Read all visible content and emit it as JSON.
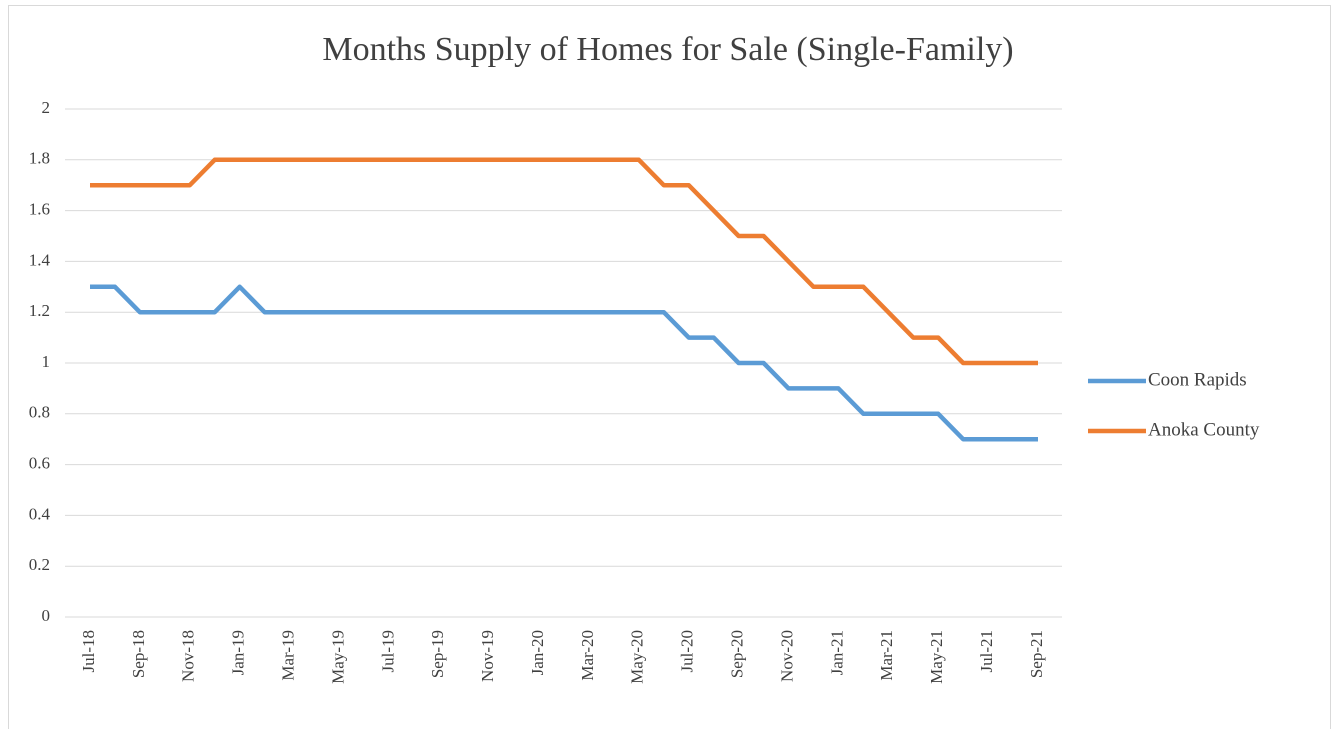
{
  "chart_data": {
    "type": "line",
    "title": "Months Supply of Homes for Sale (Single-Family)",
    "categories": [
      "Jul-18",
      null,
      "Sep-18",
      null,
      "Nov-18",
      null,
      "Jan-19",
      null,
      "Mar-19",
      null,
      "May-19",
      null,
      "Jul-19",
      null,
      "Sep-19",
      null,
      "Nov-19",
      null,
      "Jan-20",
      null,
      "Mar-20",
      null,
      "May-20",
      null,
      "Jul-20",
      null,
      "Sep-20",
      null,
      "Nov-20",
      null,
      "Jan-21",
      null,
      "Mar-21",
      null,
      "May-21",
      null,
      "Jul-21",
      null,
      "Sep-21"
    ],
    "series": [
      {
        "name": "Coon Rapids",
        "color": "#5b9bd5",
        "values": [
          1.3,
          1.3,
          1.2,
          1.2,
          1.2,
          1.2,
          1.3,
          1.2,
          1.2,
          1.2,
          1.2,
          1.2,
          1.2,
          1.2,
          1.2,
          1.2,
          1.2,
          1.2,
          1.2,
          1.2,
          1.2,
          1.2,
          1.2,
          1.2,
          1.1,
          1.1,
          1.0,
          1.0,
          0.9,
          0.9,
          0.9,
          0.8,
          0.8,
          0.8,
          0.8,
          0.7,
          0.7,
          0.7,
          0.7
        ]
      },
      {
        "name": "Anoka County",
        "color": "#ed7d31",
        "values": [
          1.7,
          1.7,
          1.7,
          1.7,
          1.7,
          1.8,
          1.8,
          1.8,
          1.8,
          1.8,
          1.8,
          1.8,
          1.8,
          1.8,
          1.8,
          1.8,
          1.8,
          1.8,
          1.8,
          1.8,
          1.8,
          1.8,
          1.8,
          1.7,
          1.7,
          1.6,
          1.5,
          1.5,
          1.4,
          1.3,
          1.3,
          1.3,
          1.2,
          1.1,
          1.1,
          1.0,
          1.0,
          1.0,
          1.0
        ]
      }
    ],
    "ylim": [
      0,
      2
    ],
    "yticks": [
      0,
      0.2,
      0.4,
      0.6,
      0.8,
      1,
      1.2,
      1.4,
      1.6,
      1.8,
      2
    ],
    "grid": true,
    "legend": "right"
  }
}
